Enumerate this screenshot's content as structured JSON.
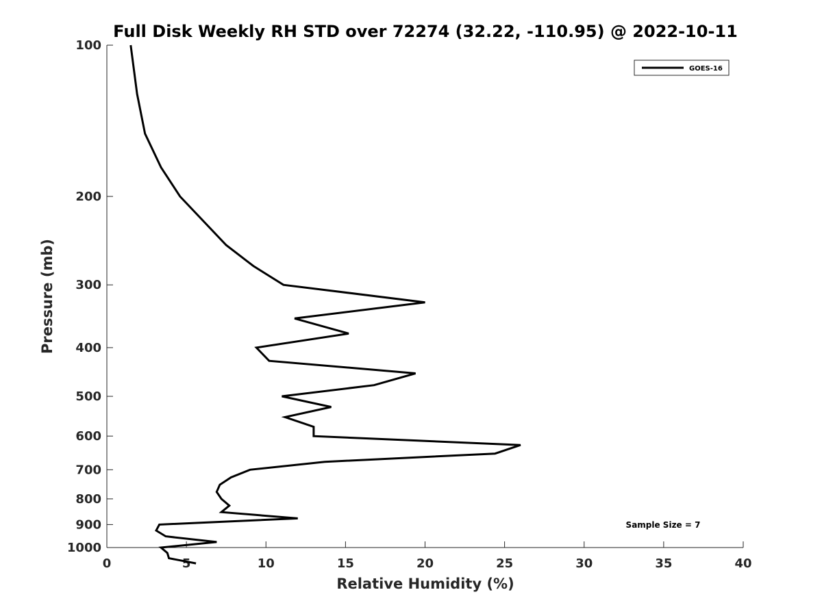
{
  "chart_data": {
    "type": "line",
    "title": "Full Disk Weekly RH STD over 72274 (32.22, -110.95) @ 2022-10-11",
    "xlabel": "Relative Humidity (%)",
    "ylabel": "Pressure (mb)",
    "xlim": [
      0,
      40
    ],
    "ylim": [
      100,
      1000
    ],
    "y_scale": "log",
    "y_reversed": true,
    "x_ticks": [
      0,
      5,
      10,
      15,
      20,
      25,
      30,
      35,
      40
    ],
    "y_ticks": [
      100,
      200,
      300,
      400,
      500,
      600,
      700,
      800,
      900,
      1000
    ],
    "grid": false,
    "legend_position": "top-right",
    "annotation": "Sample Size = 7",
    "series": [
      {
        "name": "GOES-16",
        "color": "#000000",
        "points": [
          {
            "x": 1.5,
            "y": 100
          },
          {
            "x": 1.9,
            "y": 125
          },
          {
            "x": 2.4,
            "y": 150
          },
          {
            "x": 3.4,
            "y": 175
          },
          {
            "x": 4.6,
            "y": 200
          },
          {
            "x": 7.5,
            "y": 250
          },
          {
            "x": 9.2,
            "y": 275
          },
          {
            "x": 11.1,
            "y": 300
          },
          {
            "x": 20.0,
            "y": 325
          },
          {
            "x": 11.8,
            "y": 350
          },
          {
            "x": 15.2,
            "y": 375
          },
          {
            "x": 9.4,
            "y": 400
          },
          {
            "x": 10.2,
            "y": 425
          },
          {
            "x": 19.4,
            "y": 450
          },
          {
            "x": 16.8,
            "y": 475
          },
          {
            "x": 11.0,
            "y": 500
          },
          {
            "x": 14.1,
            "y": 525
          },
          {
            "x": 11.2,
            "y": 550
          },
          {
            "x": 13.0,
            "y": 575
          },
          {
            "x": 13.0,
            "y": 600
          },
          {
            "x": 26.0,
            "y": 625
          },
          {
            "x": 24.4,
            "y": 650
          },
          {
            "x": 13.7,
            "y": 675
          },
          {
            "x": 9.0,
            "y": 700
          },
          {
            "x": 7.8,
            "y": 725
          },
          {
            "x": 7.1,
            "y": 750
          },
          {
            "x": 6.9,
            "y": 775
          },
          {
            "x": 7.2,
            "y": 800
          },
          {
            "x": 7.7,
            "y": 825
          },
          {
            "x": 7.2,
            "y": 850
          },
          {
            "x": 12.0,
            "y": 875
          },
          {
            "x": 3.3,
            "y": 900
          },
          {
            "x": 3.1,
            "y": 925
          },
          {
            "x": 3.7,
            "y": 950
          },
          {
            "x": 6.9,
            "y": 975
          },
          {
            "x": 3.4,
            "y": 1000
          },
          {
            "x": 3.8,
            "y": 1025
          },
          {
            "x": 3.9,
            "y": 1050
          },
          {
            "x": 5.6,
            "y": 1075
          }
        ]
      }
    ]
  }
}
